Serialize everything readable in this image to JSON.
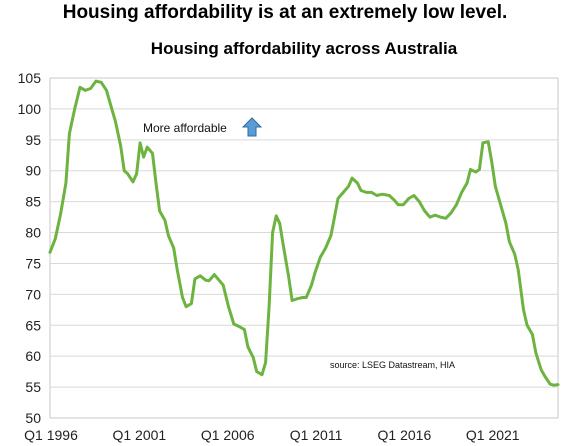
{
  "headline": "Housing affordability is at an extremely low level.",
  "chart_data": {
    "type": "line",
    "title": "Housing affordability  across Australia",
    "xlabel": "",
    "ylabel": "",
    "ylim": [
      50,
      105
    ],
    "y_ticks": [
      50,
      55,
      60,
      65,
      70,
      75,
      80,
      85,
      90,
      95,
      100,
      105
    ],
    "x_tick_labels": [
      "Q1 1996",
      "Q1 2001",
      "Q1 2006",
      "Q1 2011",
      "Q1 2016",
      "Q1 2021"
    ],
    "x_tick_dates": [
      1996,
      2001,
      2006,
      2011,
      2016,
      2021
    ],
    "xlim": [
      1996,
      2024.75
    ],
    "grid": true,
    "line_color": "#6db33f",
    "annotation": "More affordable",
    "annotation_icon": "up-arrow-icon",
    "source_note": "source:  LSEG Datastream, HIA",
    "series": [
      {
        "values": [
          [
            1996.0,
            76.8
          ],
          [
            1996.3,
            79
          ],
          [
            1996.6,
            83
          ],
          [
            1996.9,
            88
          ],
          [
            1997.1,
            96
          ],
          [
            1997.4,
            100
          ],
          [
            1997.7,
            103.5
          ],
          [
            1998.0,
            103
          ],
          [
            1998.3,
            103.3
          ],
          [
            1998.6,
            104.5
          ],
          [
            1998.9,
            104.3
          ],
          [
            1999.2,
            103
          ],
          [
            1999.5,
            100
          ],
          [
            1999.7,
            98
          ],
          [
            2000.0,
            94
          ],
          [
            2000.2,
            90
          ],
          [
            2000.4,
            89.5
          ],
          [
            2000.7,
            88.2
          ],
          [
            2000.9,
            89.5
          ],
          [
            2001.1,
            94.5
          ],
          [
            2001.3,
            92.2
          ],
          [
            2001.5,
            93.8
          ],
          [
            2001.8,
            92.8
          ],
          [
            2002.0,
            88
          ],
          [
            2002.2,
            83.5
          ],
          [
            2002.5,
            82
          ],
          [
            2002.7,
            79.5
          ],
          [
            2003.0,
            77.5
          ],
          [
            2003.2,
            74
          ],
          [
            2003.5,
            69.5
          ],
          [
            2003.7,
            68
          ],
          [
            2004.0,
            68.5
          ],
          [
            2004.2,
            72.5
          ],
          [
            2004.5,
            73
          ],
          [
            2004.8,
            72.3
          ],
          [
            2005.0,
            72.2
          ],
          [
            2005.3,
            73.2
          ],
          [
            2005.6,
            72.2
          ],
          [
            2005.8,
            71.5
          ],
          [
            2006.1,
            68
          ],
          [
            2006.4,
            65.2
          ],
          [
            2006.7,
            64.8
          ],
          [
            2007.0,
            64.3
          ],
          [
            2007.2,
            61.5
          ],
          [
            2007.5,
            59.8
          ],
          [
            2007.7,
            57.5
          ],
          [
            2008.0,
            57
          ],
          [
            2008.2,
            59
          ],
          [
            2008.4,
            68
          ],
          [
            2008.6,
            80
          ],
          [
            2008.8,
            82.7
          ],
          [
            2009.0,
            81.5
          ],
          [
            2009.2,
            78
          ],
          [
            2009.5,
            73
          ],
          [
            2009.7,
            69
          ],
          [
            2010.0,
            69.3
          ],
          [
            2010.3,
            69.5
          ],
          [
            2010.5,
            69.5
          ],
          [
            2010.8,
            71.5
          ],
          [
            2011.0,
            73.5
          ],
          [
            2011.3,
            76
          ],
          [
            2011.6,
            77.5
          ],
          [
            2011.9,
            79.5
          ],
          [
            2012.1,
            82.5
          ],
          [
            2012.3,
            85.5
          ],
          [
            2012.6,
            86.5
          ],
          [
            2012.9,
            87.5
          ],
          [
            2013.1,
            88.8
          ],
          [
            2013.4,
            88
          ],
          [
            2013.6,
            86.8
          ],
          [
            2013.9,
            86.5
          ],
          [
            2014.2,
            86.5
          ],
          [
            2014.5,
            86
          ],
          [
            2014.8,
            86.2
          ],
          [
            2015.2,
            86
          ],
          [
            2015.5,
            85.2
          ],
          [
            2015.7,
            84.5
          ],
          [
            2016.0,
            84.5
          ],
          [
            2016.3,
            85.5
          ],
          [
            2016.6,
            86
          ],
          [
            2016.9,
            85
          ],
          [
            2017.2,
            83.5
          ],
          [
            2017.5,
            82.5
          ],
          [
            2017.8,
            82.8
          ],
          [
            2018.1,
            82.5
          ],
          [
            2018.4,
            82.3
          ],
          [
            2018.7,
            83.2
          ],
          [
            2019.0,
            84.5
          ],
          [
            2019.3,
            86.5
          ],
          [
            2019.6,
            88
          ],
          [
            2019.8,
            90.2
          ],
          [
            2020.1,
            89.8
          ],
          [
            2020.3,
            90.2
          ],
          [
            2020.5,
            94.5
          ],
          [
            2020.8,
            94.7
          ],
          [
            2021.0,
            91.5
          ],
          [
            2021.2,
            87.5
          ],
          [
            2021.5,
            84.5
          ],
          [
            2021.8,
            81.5
          ],
          [
            2022.0,
            78.5
          ],
          [
            2022.3,
            76.5
          ],
          [
            2022.5,
            74
          ],
          [
            2022.8,
            67.5
          ],
          [
            2023.0,
            65
          ],
          [
            2023.3,
            63.5
          ],
          [
            2023.5,
            60.5
          ],
          [
            2023.8,
            57.8
          ],
          [
            2024.0,
            56.8
          ],
          [
            2024.3,
            55.5
          ],
          [
            2024.5,
            55.3
          ],
          [
            2024.75,
            55.4
          ]
        ]
      }
    ]
  }
}
